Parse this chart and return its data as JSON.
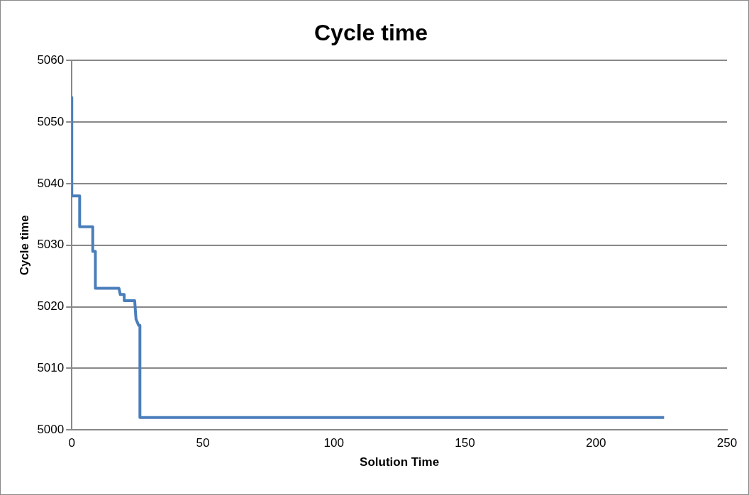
{
  "chart_data": {
    "type": "line",
    "title": "Cycle time",
    "xlabel": "Solution Time",
    "ylabel": "Cycle time",
    "x": [
      0,
      0,
      3,
      3,
      8,
      8,
      9,
      9,
      18,
      18.5,
      20,
      20,
      24,
      24.5,
      25.5,
      26,
      26,
      226
    ],
    "series": [
      {
        "color": "#4a7ebb",
        "values": [
          5054,
          5038,
          5038,
          5033,
          5033,
          5029,
          5029,
          5023,
          5023,
          5022,
          5022,
          5021,
          5021,
          5018,
          5017,
          5017,
          5002,
          5002
        ]
      }
    ],
    "xlim": [
      0,
      250
    ],
    "xticks": [
      0,
      50,
      100,
      150,
      200,
      250
    ],
    "ylim": [
      5000,
      5060
    ],
    "yticks": [
      5000,
      5010,
      5020,
      5030,
      5040,
      5050,
      5060
    ],
    "grid": "y",
    "legend": false,
    "marker": "none",
    "line_style": "solid"
  }
}
